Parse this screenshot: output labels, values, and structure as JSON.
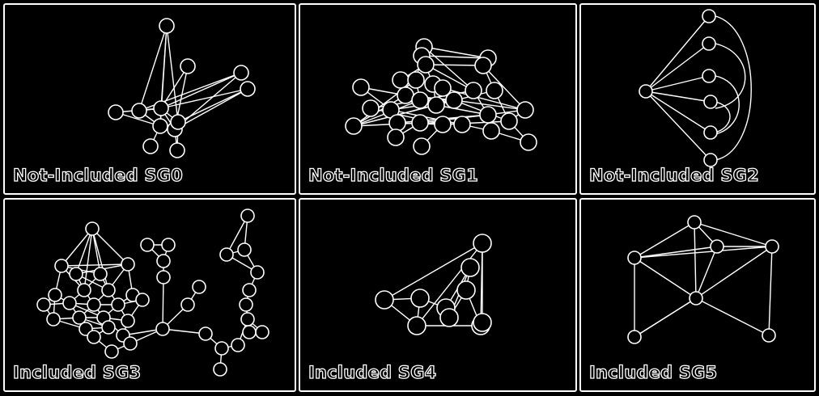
{
  "panels": [
    {
      "label": "Not-Included SG0"
    },
    {
      "label": "Not-Included SG1"
    },
    {
      "label": "Not-Included SG2"
    },
    {
      "label": "Included SG3"
    },
    {
      "label": "Included SG4"
    },
    {
      "label": "Included SG5"
    }
  ],
  "colors": {
    "background": "#000000",
    "stroke": "#ffffff"
  }
}
